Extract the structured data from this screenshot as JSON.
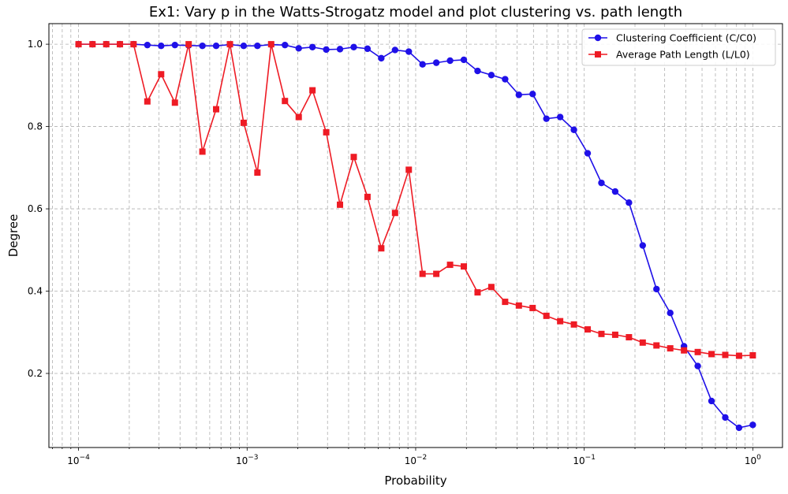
{
  "chart_data": {
    "type": "line",
    "title": "Ex1: Vary p in the Watts-Strogatz model and plot clustering vs. path length",
    "xlabel": "Probability",
    "ylabel": "Degree",
    "xscale": "log",
    "xlim": [
      6.67e-05,
      1.5
    ],
    "ylim": [
      0.02,
      1.05
    ],
    "xticks": [
      {
        "value": 0.0001,
        "base": "10",
        "exp": "−4"
      },
      {
        "value": 0.001,
        "base": "10",
        "exp": "−3"
      },
      {
        "value": 0.01,
        "base": "10",
        "exp": "−2"
      },
      {
        "value": 0.1,
        "base": "10",
        "exp": "−1"
      },
      {
        "value": 1,
        "base": "10",
        "exp": "0"
      }
    ],
    "yticks": [
      {
        "value": 0.2,
        "label": "0.2"
      },
      {
        "value": 0.4,
        "label": "0.4"
      },
      {
        "value": 0.6,
        "label": "0.6"
      },
      {
        "value": 0.8,
        "label": "0.8"
      },
      {
        "value": 1.0,
        "label": "1.0"
      }
    ],
    "grid": true,
    "legend_position": "top-right",
    "x": [
      0.0001,
      0.000121,
      0.000146,
      0.000176,
      0.000212,
      0.000256,
      0.000309,
      0.000373,
      0.00045,
      0.000543,
      0.000655,
      0.000791,
      0.000954,
      0.001151,
      0.001389,
      0.001677,
      0.002024,
      0.002442,
      0.002947,
      0.003556,
      0.004292,
      0.005179,
      0.006251,
      0.007543,
      0.009103,
      0.010985,
      0.013257,
      0.015999,
      0.019307,
      0.0233,
      0.028118,
      0.033932,
      0.040949,
      0.049417,
      0.059636,
      0.071969,
      0.086851,
      0.104811,
      0.126486,
      0.152642,
      0.184207,
      0.2223,
      0.26827,
      0.323746,
      0.390694,
      0.471487,
      0.568987,
      0.686649,
      0.828643,
      1.0
    ],
    "series": [
      {
        "name": "Clustering Coefficient (C/C0)",
        "color": "#1f10e8",
        "marker": "circle",
        "values": [
          1.0,
          1.0,
          1.0,
          1.0,
          1.0,
          0.998,
          0.996,
          0.998,
          0.997,
          0.996,
          0.996,
          0.999,
          0.996,
          0.996,
          0.999,
          0.998,
          0.99,
          0.993,
          0.987,
          0.988,
          0.993,
          0.989,
          0.966,
          0.986,
          0.982,
          0.951,
          0.955,
          0.96,
          0.962,
          0.935,
          0.925,
          0.915,
          0.877,
          0.879,
          0.819,
          0.823,
          0.792,
          0.735,
          0.663,
          0.642,
          0.615,
          0.511,
          0.405,
          0.347,
          0.266,
          0.218,
          0.133,
          0.093,
          0.068,
          0.075
        ]
      },
      {
        "name": "Average Path Length (L/L0)",
        "color": "#ee1b24",
        "marker": "square",
        "values": [
          1.0,
          1.0,
          1.0,
          1.0,
          1.0,
          0.861,
          0.927,
          0.858,
          1.0,
          0.739,
          0.842,
          1.0,
          0.809,
          0.688,
          1.0,
          0.862,
          0.823,
          0.888,
          0.786,
          0.61,
          0.726,
          0.629,
          0.504,
          0.59,
          0.695,
          0.442,
          0.442,
          0.464,
          0.46,
          0.397,
          0.41,
          0.374,
          0.365,
          0.359,
          0.34,
          0.327,
          0.319,
          0.307,
          0.296,
          0.294,
          0.288,
          0.275,
          0.268,
          0.261,
          0.256,
          0.252,
          0.247,
          0.245,
          0.243,
          0.244
        ]
      }
    ]
  }
}
